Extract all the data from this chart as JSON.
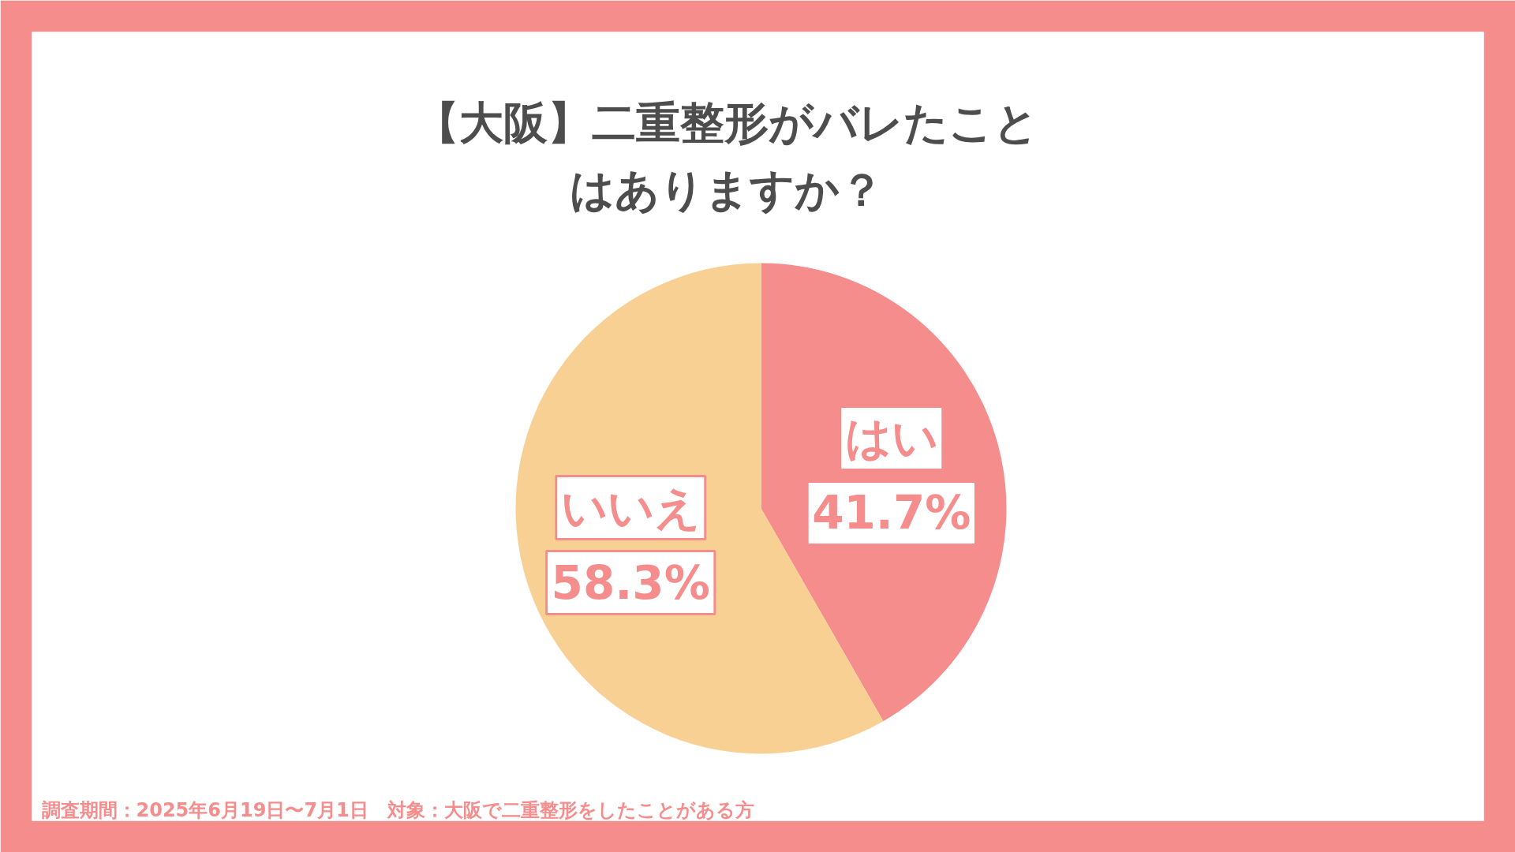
{
  "chart_data": {
    "type": "pie",
    "title": "【大阪】二重整形がバレたことはありますか？",
    "categories": [
      "はい",
      "いいえ"
    ],
    "values": [
      41.7,
      58.3
    ],
    "colors": [
      "#f58d8d",
      "#f9d093"
    ],
    "value_labels": [
      "41.7%",
      "58.3%"
    ],
    "legend": false,
    "annotations": [
      "調査期間：2025年6月19日〜7月1日　対象：大阪で二重整形をしたことがある方"
    ]
  }
}
